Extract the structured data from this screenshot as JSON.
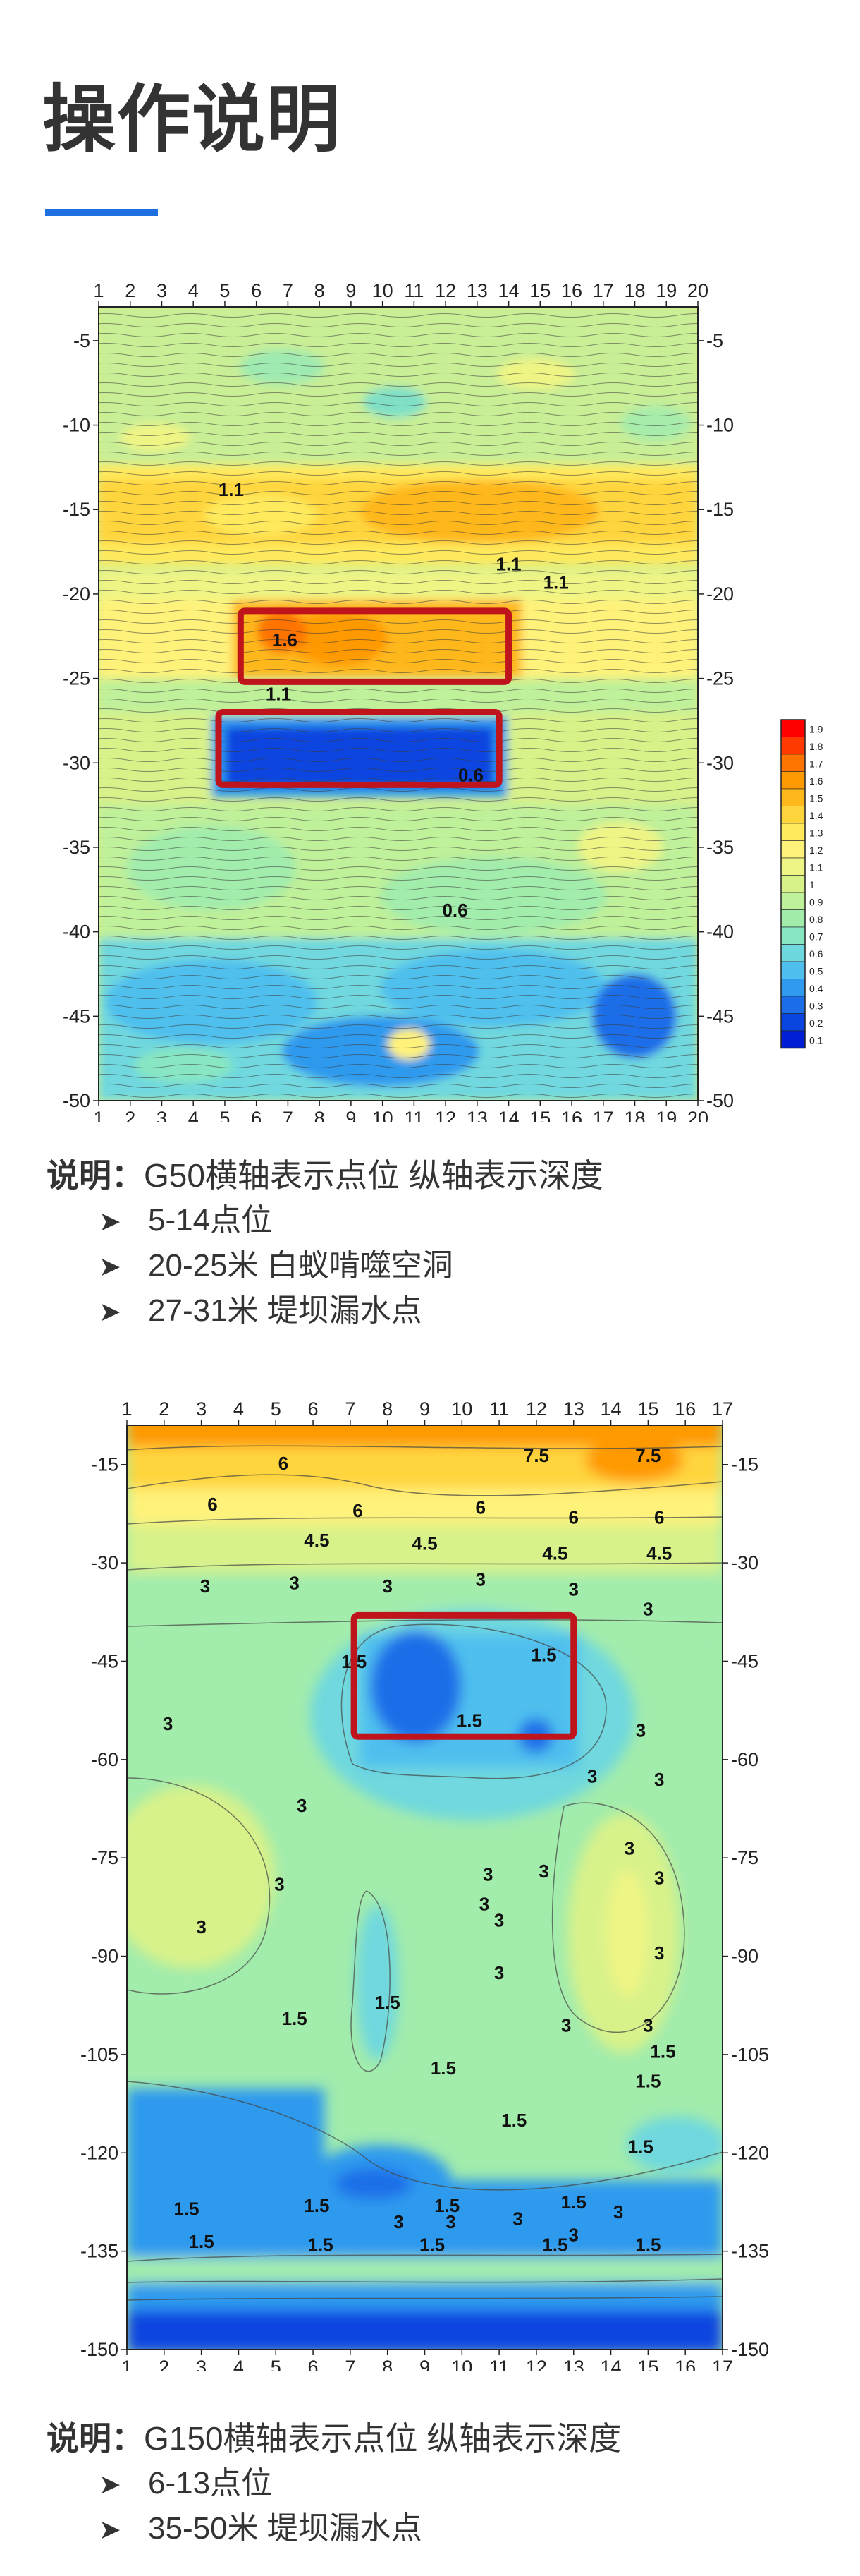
{
  "header": {
    "title": "操作说明"
  },
  "colors": {
    "accent": "#1e6fe0",
    "highlight_box": "#c0141c"
  },
  "chart_data": [
    {
      "type": "heatmap",
      "xlabel": "",
      "ylabel": "",
      "x_ticks": [
        1,
        2,
        3,
        4,
        5,
        6,
        7,
        8,
        9,
        10,
        11,
        12,
        13,
        14,
        15,
        16,
        17,
        18,
        19,
        20
      ],
      "y_ticks": [
        -5,
        -10,
        -15,
        -20,
        -25,
        -30,
        -35,
        -40,
        -45,
        -50
      ],
      "xlim": [
        1,
        20
      ],
      "ylim": [
        -50,
        -3
      ],
      "contour_labels": [
        {
          "text": "1.1",
          "x": 5.2,
          "y": -14.2
        },
        {
          "text": "1.1",
          "x": 14.0,
          "y": -18.6
        },
        {
          "text": "1.1",
          "x": 15.5,
          "y": -19.7
        },
        {
          "text": "1.6",
          "x": 6.9,
          "y": -23.1
        },
        {
          "text": "1.1",
          "x": 6.7,
          "y": -26.3
        },
        {
          "text": "0.6",
          "x": 12.8,
          "y": -31.1
        },
        {
          "text": "0.6",
          "x": 12.3,
          "y": -39.1
        }
      ],
      "highlight_boxes": [
        {
          "x": [
            5.5,
            14.0
          ],
          "y": [
            -21.0,
            -25.2
          ]
        },
        {
          "x": [
            4.8,
            13.7
          ],
          "y": [
            -27.0,
            -31.3
          ]
        }
      ],
      "legend": {
        "placement": "right",
        "levels": [
          "1.9",
          "1.8",
          "1.7",
          "1.6",
          "1.5",
          "1.4",
          "1.3",
          "1.2",
          "1.1",
          "1",
          "0.9",
          "0.8",
          "0.7",
          "0.6",
          "0.5",
          "0.4",
          "0.3",
          "0.2",
          "0.1"
        ],
        "colors": [
          "#ff0000",
          "#ff3a00",
          "#ff7300",
          "#ff9900",
          "#ffb81c",
          "#ffd53d",
          "#ffe95c",
          "#fff27a",
          "#eef585",
          "#d8f28a",
          "#bff09a",
          "#a2ecac",
          "#88e6c2",
          "#6fd8de",
          "#4fc0ee",
          "#2f9aee",
          "#1b6ee8",
          "#0b45e0",
          "#001ed6"
        ]
      }
    },
    {
      "type": "heatmap",
      "xlabel": "",
      "ylabel": "",
      "x_ticks": [
        1,
        2,
        3,
        4,
        5,
        6,
        7,
        8,
        9,
        10,
        11,
        12,
        13,
        14,
        15,
        16,
        17
      ],
      "y_ticks": [
        -15,
        -30,
        -45,
        -60,
        -75,
        -90,
        -105,
        -120,
        -135,
        -150
      ],
      "xlim": [
        1,
        17
      ],
      "ylim": [
        -150,
        -9
      ],
      "contour_labels": [
        {
          "text": "7.5",
          "x": 12.0,
          "y": -14.6
        },
        {
          "text": "7.5",
          "x": 15.0,
          "y": -14.6
        },
        {
          "text": "6",
          "x": 5.2,
          "y": -15.8
        },
        {
          "text": "6",
          "x": 3.3,
          "y": -22.0
        },
        {
          "text": "6",
          "x": 7.2,
          "y": -23.0
        },
        {
          "text": "6",
          "x": 10.5,
          "y": -22.5
        },
        {
          "text": "6",
          "x": 13.0,
          "y": -24.0
        },
        {
          "text": "6",
          "x": 15.3,
          "y": -24.0
        },
        {
          "text": "4.5",
          "x": 6.1,
          "y": -27.5
        },
        {
          "text": "4.5",
          "x": 9.0,
          "y": -28.0
        },
        {
          "text": "4.5",
          "x": 12.5,
          "y": -29.5
        },
        {
          "text": "4.5",
          "x": 15.3,
          "y": -29.5
        },
        {
          "text": "3",
          "x": 3.1,
          "y": -34.5
        },
        {
          "text": "3",
          "x": 5.5,
          "y": -34.0
        },
        {
          "text": "3",
          "x": 8.0,
          "y": -34.5
        },
        {
          "text": "3",
          "x": 10.5,
          "y": -33.5
        },
        {
          "text": "3",
          "x": 13.0,
          "y": -35.0
        },
        {
          "text": "3",
          "x": 15.0,
          "y": -38.0
        },
        {
          "text": "1.5",
          "x": 7.1,
          "y": -46.0
        },
        {
          "text": "1.5",
          "x": 12.2,
          "y": -45.0
        },
        {
          "text": "1.5",
          "x": 10.2,
          "y": -55.0
        },
        {
          "text": "3",
          "x": 2.1,
          "y": -55.5
        },
        {
          "text": "3",
          "x": 14.8,
          "y": -56.5
        },
        {
          "text": "3",
          "x": 5.7,
          "y": -68.0
        },
        {
          "text": "3",
          "x": 13.5,
          "y": -63.5
        },
        {
          "text": "3",
          "x": 15.3,
          "y": -64.0
        },
        {
          "text": "3",
          "x": 14.5,
          "y": -74.5
        },
        {
          "text": "3",
          "x": 5.1,
          "y": -80.0
        },
        {
          "text": "3",
          "x": 10.7,
          "y": -78.5
        },
        {
          "text": "3",
          "x": 12.2,
          "y": -78.0
        },
        {
          "text": "3",
          "x": 10.6,
          "y": -83.0
        },
        {
          "text": "3",
          "x": 11.0,
          "y": -85.5
        },
        {
          "text": "3",
          "x": 15.3,
          "y": -79.0
        },
        {
          "text": "3",
          "x": 3.0,
          "y": -86.5
        },
        {
          "text": "3",
          "x": 15.3,
          "y": -90.5
        },
        {
          "text": "3",
          "x": 11.0,
          "y": -93.5
        },
        {
          "text": "3",
          "x": 12.8,
          "y": -101.5
        },
        {
          "text": "3",
          "x": 15.0,
          "y": -101.5
        },
        {
          "text": "1.5",
          "x": 8.0,
          "y": -98.0
        },
        {
          "text": "1.5",
          "x": 5.5,
          "y": -100.5
        },
        {
          "text": "1.5",
          "x": 9.5,
          "y": -108.0
        },
        {
          "text": "1.5",
          "x": 15.4,
          "y": -105.5
        },
        {
          "text": "1.5",
          "x": 15.0,
          "y": -110.0
        },
        {
          "text": "1.5",
          "x": 11.4,
          "y": -116.0
        },
        {
          "text": "1.5",
          "x": 14.8,
          "y": -120.0
        },
        {
          "text": "1.5",
          "x": 2.6,
          "y": -129.5
        },
        {
          "text": "1.5",
          "x": 6.1,
          "y": -129.0
        },
        {
          "text": "1.5",
          "x": 9.6,
          "y": -129.0
        },
        {
          "text": "1.5",
          "x": 13.0,
          "y": -128.5
        },
        {
          "text": "3",
          "x": 8.3,
          "y": -131.5
        },
        {
          "text": "3",
          "x": 9.7,
          "y": -131.5
        },
        {
          "text": "3",
          "x": 11.5,
          "y": -131.0
        },
        {
          "text": "3",
          "x": 14.2,
          "y": -130.0
        },
        {
          "text": "1.5",
          "x": 3.0,
          "y": -134.5
        },
        {
          "text": "1.5",
          "x": 6.2,
          "y": -135.0
        },
        {
          "text": "1.5",
          "x": 9.2,
          "y": -135.0
        },
        {
          "text": "3",
          "x": 13.0,
          "y": -133.5
        },
        {
          "text": "1.5",
          "x": 12.5,
          "y": -135.0
        },
        {
          "text": "1.5",
          "x": 15.0,
          "y": -135.0
        }
      ],
      "highlight_boxes": [
        {
          "x": [
            7.1,
            13.0
          ],
          "y": [
            -38.0,
            -56.5
          ]
        }
      ]
    }
  ],
  "notes": [
    {
      "label": "说明：",
      "text": "G50横轴表示点位  纵轴表示深度",
      "bullets": [
        "5-14点位",
        "20-25米  白蚁啃噬空洞",
        "27-31米  堤坝漏水点"
      ]
    },
    {
      "label": "说明：",
      "text": "G150横轴表示点位  纵轴表示深度",
      "bullets": [
        "6-13点位",
        "35-50米 堤坝漏水点"
      ]
    }
  ],
  "bullet_icon": "arrowhead-icon"
}
